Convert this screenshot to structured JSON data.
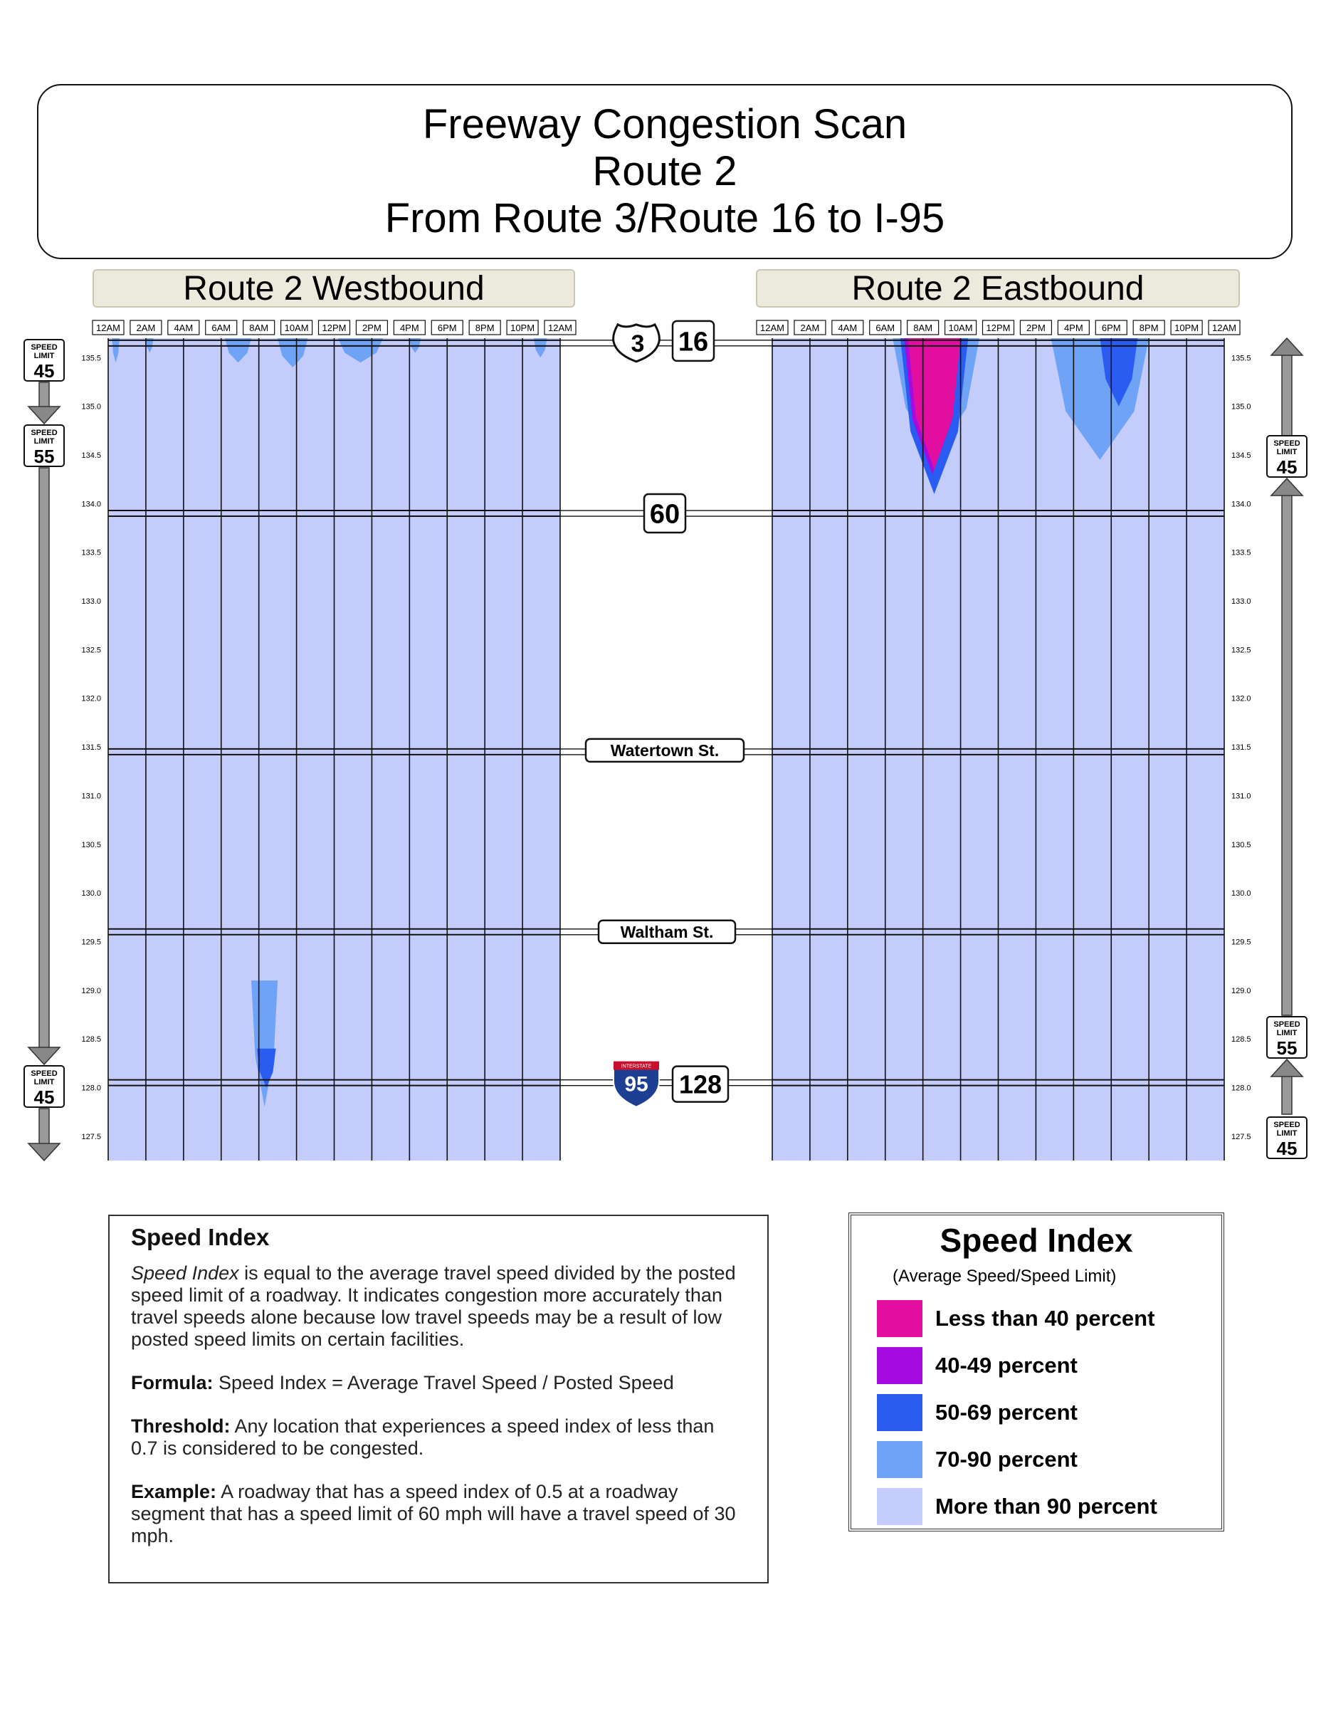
{
  "title": {
    "line1": "Freeway Congestion Scan",
    "line2": "Route 2",
    "line3": "From Route 3/Route 16 to I-95"
  },
  "panels": {
    "west": "Route 2 Westbound",
    "east": "Route 2 Eastbound"
  },
  "chart_data": {
    "type": "heatmap",
    "x_tick_labels": [
      "12AM",
      "2AM",
      "4AM",
      "6AM",
      "8AM",
      "10AM",
      "12PM",
      "2PM",
      "4PM",
      "6PM",
      "8PM",
      "10PM",
      "12AM"
    ],
    "x_range_hours": [
      0,
      24
    ],
    "y_tick_labels": [
      "135.5",
      "135.0",
      "134.5",
      "134.0",
      "133.5",
      "133.0",
      "132.5",
      "132.0",
      "131.5",
      "131.0",
      "130.5",
      "130.0",
      "129.5",
      "129.0",
      "128.5",
      "128.0",
      "127.5"
    ],
    "y_range_mile": [
      127.25,
      135.7
    ],
    "default_category": "More than 90 percent",
    "landmarks": [
      {
        "name": "Route 3 / Route 16",
        "labels": [
          "3",
          "16"
        ],
        "mile": 135.65
      },
      {
        "name": "Route 60",
        "labels": [
          "60"
        ],
        "mile": 133.9
      },
      {
        "name": "Watertown St.",
        "labels": [
          "Watertown St."
        ],
        "mile": 131.45
      },
      {
        "name": "Waltham St.",
        "labels": [
          "Waltham St."
        ],
        "mile": 129.6
      },
      {
        "name": "I-95 / Route 128",
        "labels": [
          "95",
          "128"
        ],
        "mile": 128.05
      }
    ],
    "series": [
      {
        "name": "Route 2 Westbound",
        "congestion_areas": [
          {
            "category": "70-90 percent",
            "hour_start": 0.2,
            "hour_end": 0.6,
            "mile_top": 135.7,
            "mile_bottom": 135.45
          },
          {
            "category": "70-90 percent",
            "hour_start": 2.0,
            "hour_end": 2.4,
            "mile_top": 135.7,
            "mile_bottom": 135.55
          },
          {
            "category": "70-90 percent",
            "hour_start": 6.2,
            "hour_end": 7.6,
            "mile_top": 135.7,
            "mile_bottom": 135.45
          },
          {
            "category": "70-90 percent",
            "hour_start": 9.0,
            "hour_end": 10.6,
            "mile_top": 135.7,
            "mile_bottom": 135.4
          },
          {
            "category": "70-90 percent",
            "hour_start": 12.2,
            "hour_end": 14.6,
            "mile_top": 135.7,
            "mile_bottom": 135.45
          },
          {
            "category": "70-90 percent",
            "hour_start": 16.0,
            "hour_end": 16.6,
            "mile_top": 135.7,
            "mile_bottom": 135.55
          },
          {
            "category": "70-90 percent",
            "hour_start": 22.6,
            "hour_end": 23.3,
            "mile_top": 135.7,
            "mile_bottom": 135.5
          },
          {
            "category": "70-90 percent",
            "hour_start": 7.6,
            "hour_end": 9.0,
            "mile_top": 129.1,
            "mile_bottom": 127.8
          },
          {
            "category": "50-69 percent",
            "hour_start": 7.9,
            "hour_end": 8.9,
            "mile_top": 128.4,
            "mile_bottom": 128.0
          }
        ]
      },
      {
        "name": "Route 2 Eastbound",
        "congestion_areas": [
          {
            "category": "70-90 percent",
            "hour_start": 6.4,
            "hour_end": 11.0,
            "mile_top": 135.7,
            "mile_bottom": 134.5
          },
          {
            "category": "50-69 percent",
            "hour_start": 6.8,
            "hour_end": 10.4,
            "mile_top": 135.7,
            "mile_bottom": 134.1
          },
          {
            "category": "40-49 percent",
            "hour_start": 7.0,
            "hour_end": 10.0,
            "mile_top": 135.7,
            "mile_bottom": 134.3
          },
          {
            "category": "Less than 40 percent",
            "hour_start": 7.2,
            "hour_end": 10.0,
            "mile_top": 135.7,
            "mile_bottom": 134.35
          },
          {
            "category": "70-90 percent",
            "hour_start": 14.8,
            "hour_end": 20.0,
            "mile_top": 135.7,
            "mile_bottom": 134.45
          },
          {
            "category": "50-69 percent",
            "hour_start": 17.4,
            "hour_end": 19.4,
            "mile_top": 135.7,
            "mile_bottom": 135.0
          }
        ]
      }
    ],
    "legend": {
      "title": "Speed Index",
      "subtitle": "(Average Speed/Speed Limit)",
      "position": "bottom-right",
      "items": [
        {
          "label": "Less than 40 percent",
          "color": "#e20ea0"
        },
        {
          "label": "40-49 percent",
          "color": "#a30be0"
        },
        {
          "label": "50-69 percent",
          "color": "#2b5cf2"
        },
        {
          "label": "70-90 percent",
          "color": "#6ea3f5"
        },
        {
          "label": "More than 90 percent",
          "color": "#c3ccfb"
        }
      ]
    },
    "grid": true
  },
  "speed_limits": {
    "west": [
      {
        "value": "45",
        "top": "SPEED",
        "bottom": "LIMIT"
      },
      {
        "value": "55",
        "top": "SPEED",
        "bottom": "LIMIT"
      },
      {
        "value": "45",
        "top": "SPEED",
        "bottom": "LIMIT"
      }
    ],
    "east": [
      {
        "value": "45",
        "top": "SPEED",
        "bottom": "LIMIT"
      },
      {
        "value": "55",
        "top": "SPEED",
        "bottom": "LIMIT"
      },
      {
        "value": "45",
        "top": "SPEED",
        "bottom": "LIMIT"
      }
    ]
  },
  "interstate_label": "INTERSTATE",
  "info": {
    "heading": "Speed Index",
    "para1_em": "Speed Index",
    "para1_rest": " is equal to the average travel speed divided by the posted speed limit of a roadway. It indicates congestion more accurately than travel speeds alone because low travel speeds may be a result of low posted speed limits on certain facilities.",
    "formula_label": "Formula:",
    "formula_text": " Speed Index = Average Travel Speed / Posted Speed",
    "threshold_label": "Threshold:",
    "threshold_text": " Any location that experiences a speed index of less than 0.7 is considered to be congested.",
    "example_label": "Example:",
    "example_text": " A roadway that has a speed index of 0.5 at a roadway segment that has a speed limit of 60 mph will have a travel speed of 30 mph."
  },
  "colors": {
    "background": "#c3ccfb",
    "grid_line": "#111111"
  }
}
